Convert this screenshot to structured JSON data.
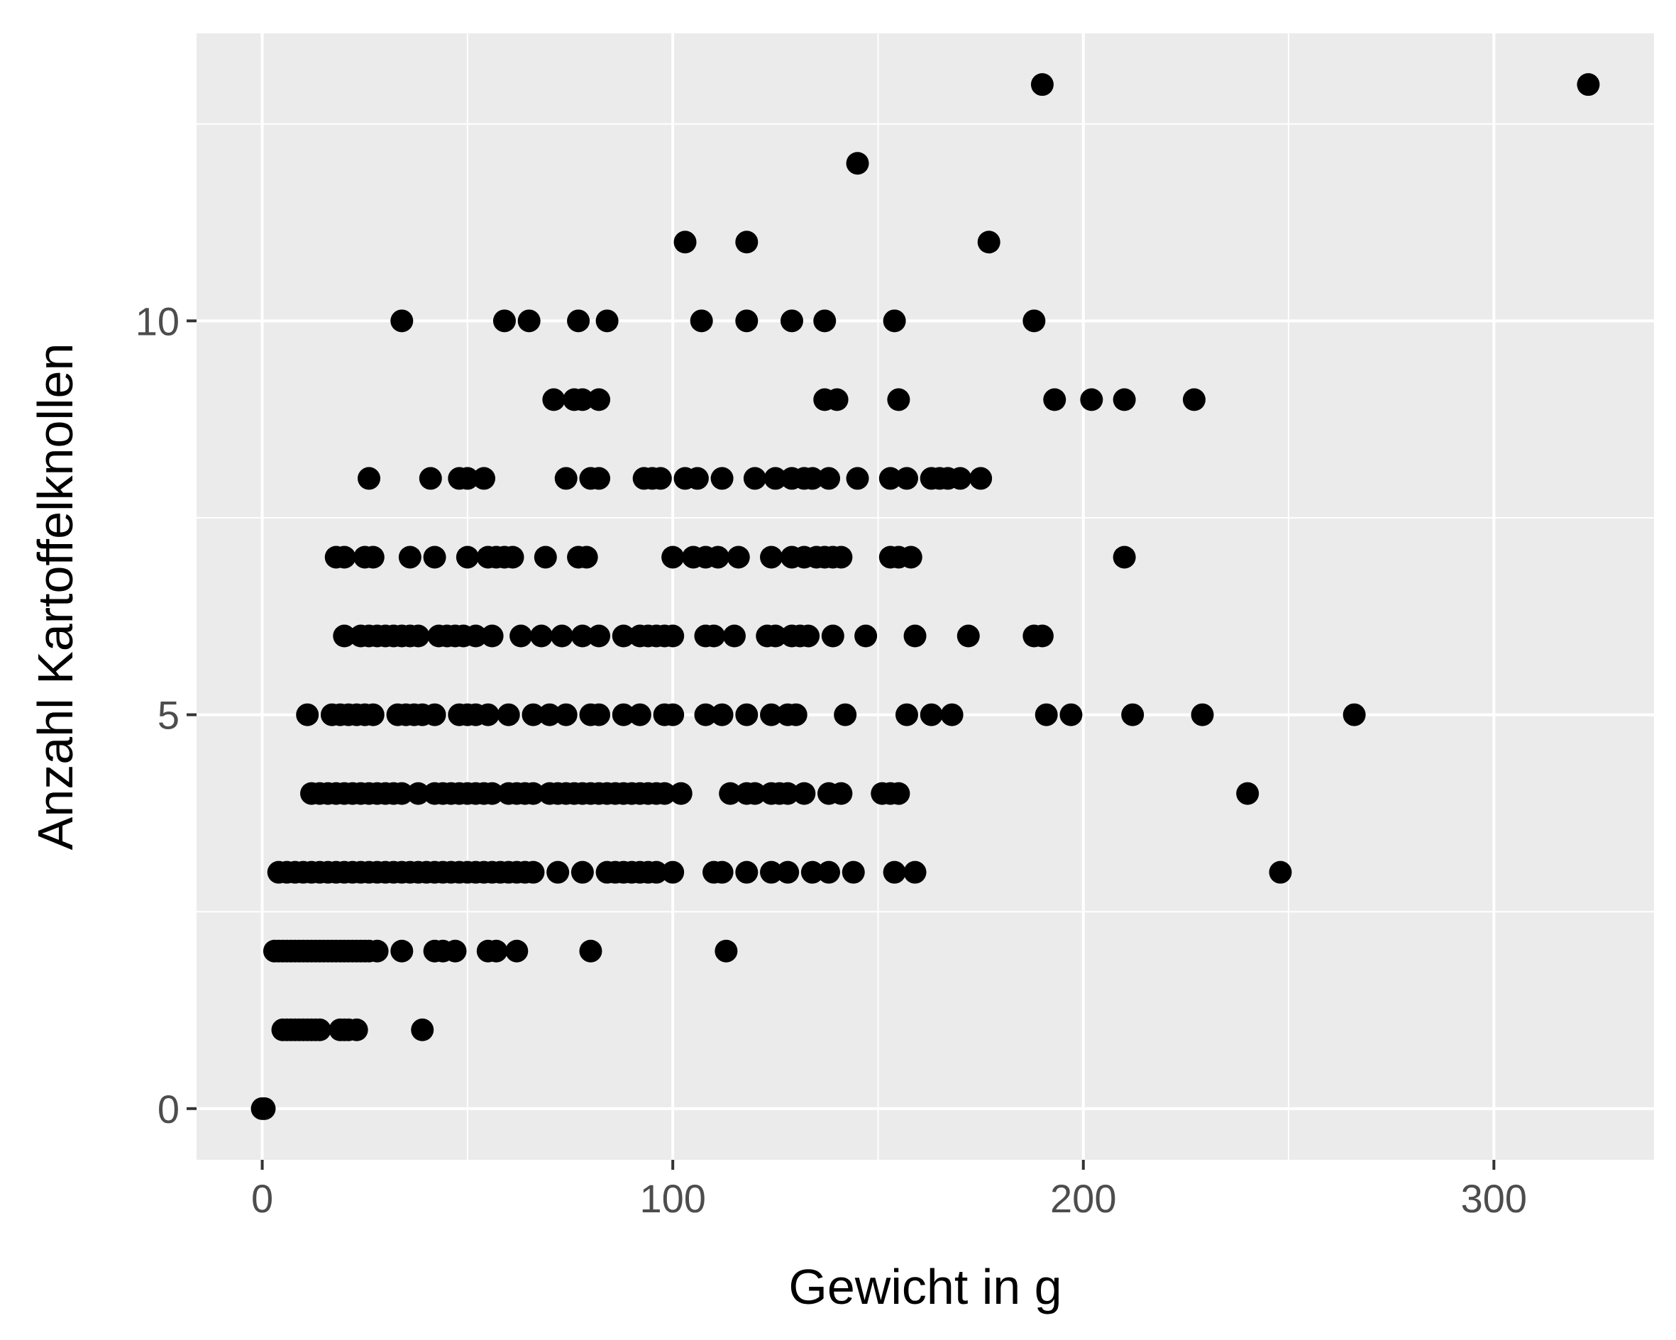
{
  "colors": {
    "panel_background": "#EBEBEB",
    "grid_major": "#FFFFFF",
    "grid_minor": "#FFFFFF",
    "point": "#000000",
    "tick_label": "#4D4D4D",
    "tick_mark": "#333333",
    "axis_title": "#000000"
  },
  "chart_data": {
    "type": "scatter",
    "title": "",
    "xlabel": "Gewicht in g",
    "ylabel": "Anzahl Kartoffelknollen",
    "xlim": [
      -16,
      339
    ],
    "ylim": [
      -0.65,
      13.65
    ],
    "grid": true,
    "x_ticks": [
      0,
      100,
      200,
      300
    ],
    "x_tick_labels": [
      "0",
      "100",
      "200",
      "300"
    ],
    "y_ticks": [
      0,
      5,
      10
    ],
    "y_tick_labels": [
      "0",
      "5",
      "10"
    ],
    "series": [
      {
        "points": [
          [
            0,
            0
          ],
          [
            0.5,
            0
          ],
          [
            5,
            1
          ],
          [
            6,
            1
          ],
          [
            7,
            1
          ],
          [
            8,
            1
          ],
          [
            9,
            1
          ],
          [
            10,
            1
          ],
          [
            11,
            1
          ],
          [
            12,
            1
          ],
          [
            13,
            1
          ],
          [
            14,
            1
          ],
          [
            19,
            1
          ],
          [
            20,
            1
          ],
          [
            21,
            1
          ],
          [
            23,
            1
          ],
          [
            39,
            1
          ],
          [
            3,
            2
          ],
          [
            4,
            2
          ],
          [
            5,
            2
          ],
          [
            6,
            2
          ],
          [
            7,
            2
          ],
          [
            8,
            2
          ],
          [
            9,
            2
          ],
          [
            10,
            2
          ],
          [
            11,
            2
          ],
          [
            12,
            2
          ],
          [
            13,
            2
          ],
          [
            14,
            2
          ],
          [
            15,
            2
          ],
          [
            16,
            2
          ],
          [
            17,
            2
          ],
          [
            18,
            2
          ],
          [
            19,
            2
          ],
          [
            20,
            2
          ],
          [
            21,
            2
          ],
          [
            22,
            2
          ],
          [
            23,
            2
          ],
          [
            24,
            2
          ],
          [
            25,
            2
          ],
          [
            26,
            2
          ],
          [
            28,
            2
          ],
          [
            34,
            2
          ],
          [
            42,
            2
          ],
          [
            44,
            2
          ],
          [
            47,
            2
          ],
          [
            55,
            2
          ],
          [
            57,
            2
          ],
          [
            62,
            2
          ],
          [
            80,
            2
          ],
          [
            113,
            2
          ],
          [
            4,
            3
          ],
          [
            6,
            3
          ],
          [
            8,
            3
          ],
          [
            10,
            3
          ],
          [
            12,
            3
          ],
          [
            14,
            3
          ],
          [
            16,
            3
          ],
          [
            18,
            3
          ],
          [
            20,
            3
          ],
          [
            22,
            3
          ],
          [
            24,
            3
          ],
          [
            26,
            3
          ],
          [
            28,
            3
          ],
          [
            30,
            3
          ],
          [
            32,
            3
          ],
          [
            34,
            3
          ],
          [
            36,
            3
          ],
          [
            38,
            3
          ],
          [
            40,
            3
          ],
          [
            42,
            3
          ],
          [
            44,
            3
          ],
          [
            46,
            3
          ],
          [
            48,
            3
          ],
          [
            50,
            3
          ],
          [
            52,
            3
          ],
          [
            54,
            3
          ],
          [
            56,
            3
          ],
          [
            58,
            3
          ],
          [
            60,
            3
          ],
          [
            62,
            3
          ],
          [
            64,
            3
          ],
          [
            66,
            3
          ],
          [
            72,
            3
          ],
          [
            78,
            3
          ],
          [
            84,
            3
          ],
          [
            86,
            3
          ],
          [
            88,
            3
          ],
          [
            90,
            3
          ],
          [
            92,
            3
          ],
          [
            94,
            3
          ],
          [
            96,
            3
          ],
          [
            100,
            3
          ],
          [
            110,
            3
          ],
          [
            112,
            3
          ],
          [
            118,
            3
          ],
          [
            124,
            3
          ],
          [
            128,
            3
          ],
          [
            134,
            3
          ],
          [
            138,
            3
          ],
          [
            144,
            3
          ],
          [
            154,
            3
          ],
          [
            159,
            3
          ],
          [
            248,
            3
          ],
          [
            12,
            4
          ],
          [
            14,
            4
          ],
          [
            16,
            4
          ],
          [
            18,
            4
          ],
          [
            20,
            4
          ],
          [
            22,
            4
          ],
          [
            24,
            4
          ],
          [
            26,
            4
          ],
          [
            28,
            4
          ],
          [
            30,
            4
          ],
          [
            32,
            4
          ],
          [
            34,
            4
          ],
          [
            38,
            4
          ],
          [
            42,
            4
          ],
          [
            44,
            4
          ],
          [
            46,
            4
          ],
          [
            48,
            4
          ],
          [
            50,
            4
          ],
          [
            52,
            4
          ],
          [
            54,
            4
          ],
          [
            56,
            4
          ],
          [
            60,
            4
          ],
          [
            62,
            4
          ],
          [
            64,
            4
          ],
          [
            66,
            4
          ],
          [
            70,
            4
          ],
          [
            72,
            4
          ],
          [
            74,
            4
          ],
          [
            76,
            4
          ],
          [
            78,
            4
          ],
          [
            80,
            4
          ],
          [
            82,
            4
          ],
          [
            84,
            4
          ],
          [
            86,
            4
          ],
          [
            88,
            4
          ],
          [
            90,
            4
          ],
          [
            92,
            4
          ],
          [
            94,
            4
          ],
          [
            96,
            4
          ],
          [
            98,
            4
          ],
          [
            102,
            4
          ],
          [
            114,
            4
          ],
          [
            118,
            4
          ],
          [
            120,
            4
          ],
          [
            124,
            4
          ],
          [
            126,
            4
          ],
          [
            128,
            4
          ],
          [
            132,
            4
          ],
          [
            138,
            4
          ],
          [
            141,
            4
          ],
          [
            151,
            4
          ],
          [
            153,
            4
          ],
          [
            155,
            4
          ],
          [
            240,
            4
          ],
          [
            11,
            5
          ],
          [
            17,
            5
          ],
          [
            19,
            5
          ],
          [
            21,
            5
          ],
          [
            23,
            5
          ],
          [
            25,
            5
          ],
          [
            27,
            5
          ],
          [
            33,
            5
          ],
          [
            35,
            5
          ],
          [
            37,
            5
          ],
          [
            39,
            5
          ],
          [
            42,
            5
          ],
          [
            48,
            5
          ],
          [
            50,
            5
          ],
          [
            52,
            5
          ],
          [
            55,
            5
          ],
          [
            60,
            5
          ],
          [
            66,
            5
          ],
          [
            70,
            5
          ],
          [
            74,
            5
          ],
          [
            80,
            5
          ],
          [
            82,
            5
          ],
          [
            88,
            5
          ],
          [
            92,
            5
          ],
          [
            98,
            5
          ],
          [
            100,
            5
          ],
          [
            108,
            5
          ],
          [
            112,
            5
          ],
          [
            118,
            5
          ],
          [
            124,
            5
          ],
          [
            128,
            5
          ],
          [
            130,
            5
          ],
          [
            142,
            5
          ],
          [
            157,
            5
          ],
          [
            163,
            5
          ],
          [
            168,
            5
          ],
          [
            191,
            5
          ],
          [
            197,
            5
          ],
          [
            212,
            5
          ],
          [
            229,
            5
          ],
          [
            266,
            5
          ],
          [
            20,
            6
          ],
          [
            24,
            6
          ],
          [
            26,
            6
          ],
          [
            28,
            6
          ],
          [
            30,
            6
          ],
          [
            32,
            6
          ],
          [
            34,
            6
          ],
          [
            36,
            6
          ],
          [
            38,
            6
          ],
          [
            43,
            6
          ],
          [
            45,
            6
          ],
          [
            47,
            6
          ],
          [
            49,
            6
          ],
          [
            52,
            6
          ],
          [
            56,
            6
          ],
          [
            63,
            6
          ],
          [
            68,
            6
          ],
          [
            73,
            6
          ],
          [
            78,
            6
          ],
          [
            82,
            6
          ],
          [
            88,
            6
          ],
          [
            92,
            6
          ],
          [
            94,
            6
          ],
          [
            96,
            6
          ],
          [
            98,
            6
          ],
          [
            100,
            6
          ],
          [
            108,
            6
          ],
          [
            110,
            6
          ],
          [
            115,
            6
          ],
          [
            123,
            6
          ],
          [
            125,
            6
          ],
          [
            129,
            6
          ],
          [
            131,
            6
          ],
          [
            133,
            6
          ],
          [
            139,
            6
          ],
          [
            147,
            6
          ],
          [
            159,
            6
          ],
          [
            172,
            6
          ],
          [
            188,
            6
          ],
          [
            190,
            6
          ],
          [
            18,
            7
          ],
          [
            20,
            7
          ],
          [
            25,
            7
          ],
          [
            27,
            7
          ],
          [
            36,
            7
          ],
          [
            42,
            7
          ],
          [
            50,
            7
          ],
          [
            55,
            7
          ],
          [
            57,
            7
          ],
          [
            59,
            7
          ],
          [
            61,
            7
          ],
          [
            69,
            7
          ],
          [
            77,
            7
          ],
          [
            79,
            7
          ],
          [
            100,
            7
          ],
          [
            105,
            7
          ],
          [
            108,
            7
          ],
          [
            111,
            7
          ],
          [
            116,
            7
          ],
          [
            124,
            7
          ],
          [
            129,
            7
          ],
          [
            132,
            7
          ],
          [
            135,
            7
          ],
          [
            137,
            7
          ],
          [
            139,
            7
          ],
          [
            141,
            7
          ],
          [
            153,
            7
          ],
          [
            155,
            7
          ],
          [
            158,
            7
          ],
          [
            210,
            7
          ],
          [
            26,
            8
          ],
          [
            41,
            8
          ],
          [
            48,
            8
          ],
          [
            50,
            8
          ],
          [
            54,
            8
          ],
          [
            74,
            8
          ],
          [
            80,
            8
          ],
          [
            82,
            8
          ],
          [
            93,
            8
          ],
          [
            95,
            8
          ],
          [
            97,
            8
          ],
          [
            103,
            8
          ],
          [
            106,
            8
          ],
          [
            112,
            8
          ],
          [
            120,
            8
          ],
          [
            125,
            8
          ],
          [
            129,
            8
          ],
          [
            132,
            8
          ],
          [
            134,
            8
          ],
          [
            138,
            8
          ],
          [
            145,
            8
          ],
          [
            153,
            8
          ],
          [
            157,
            8
          ],
          [
            163,
            8
          ],
          [
            165,
            8
          ],
          [
            167,
            8
          ],
          [
            170,
            8
          ],
          [
            175,
            8
          ],
          [
            71,
            9
          ],
          [
            76,
            9
          ],
          [
            78,
            9
          ],
          [
            82,
            9
          ],
          [
            137,
            9
          ],
          [
            140,
            9
          ],
          [
            155,
            9
          ],
          [
            193,
            9
          ],
          [
            202,
            9
          ],
          [
            210,
            9
          ],
          [
            227,
            9
          ],
          [
            34,
            10
          ],
          [
            59,
            10
          ],
          [
            65,
            10
          ],
          [
            77,
            10
          ],
          [
            84,
            10
          ],
          [
            107,
            10
          ],
          [
            118,
            10
          ],
          [
            129,
            10
          ],
          [
            137,
            10
          ],
          [
            154,
            10
          ],
          [
            188,
            10
          ],
          [
            103,
            11
          ],
          [
            118,
            11
          ],
          [
            177,
            11
          ],
          [
            145,
            12
          ],
          [
            190,
            13
          ],
          [
            323,
            13
          ]
        ]
      }
    ]
  }
}
